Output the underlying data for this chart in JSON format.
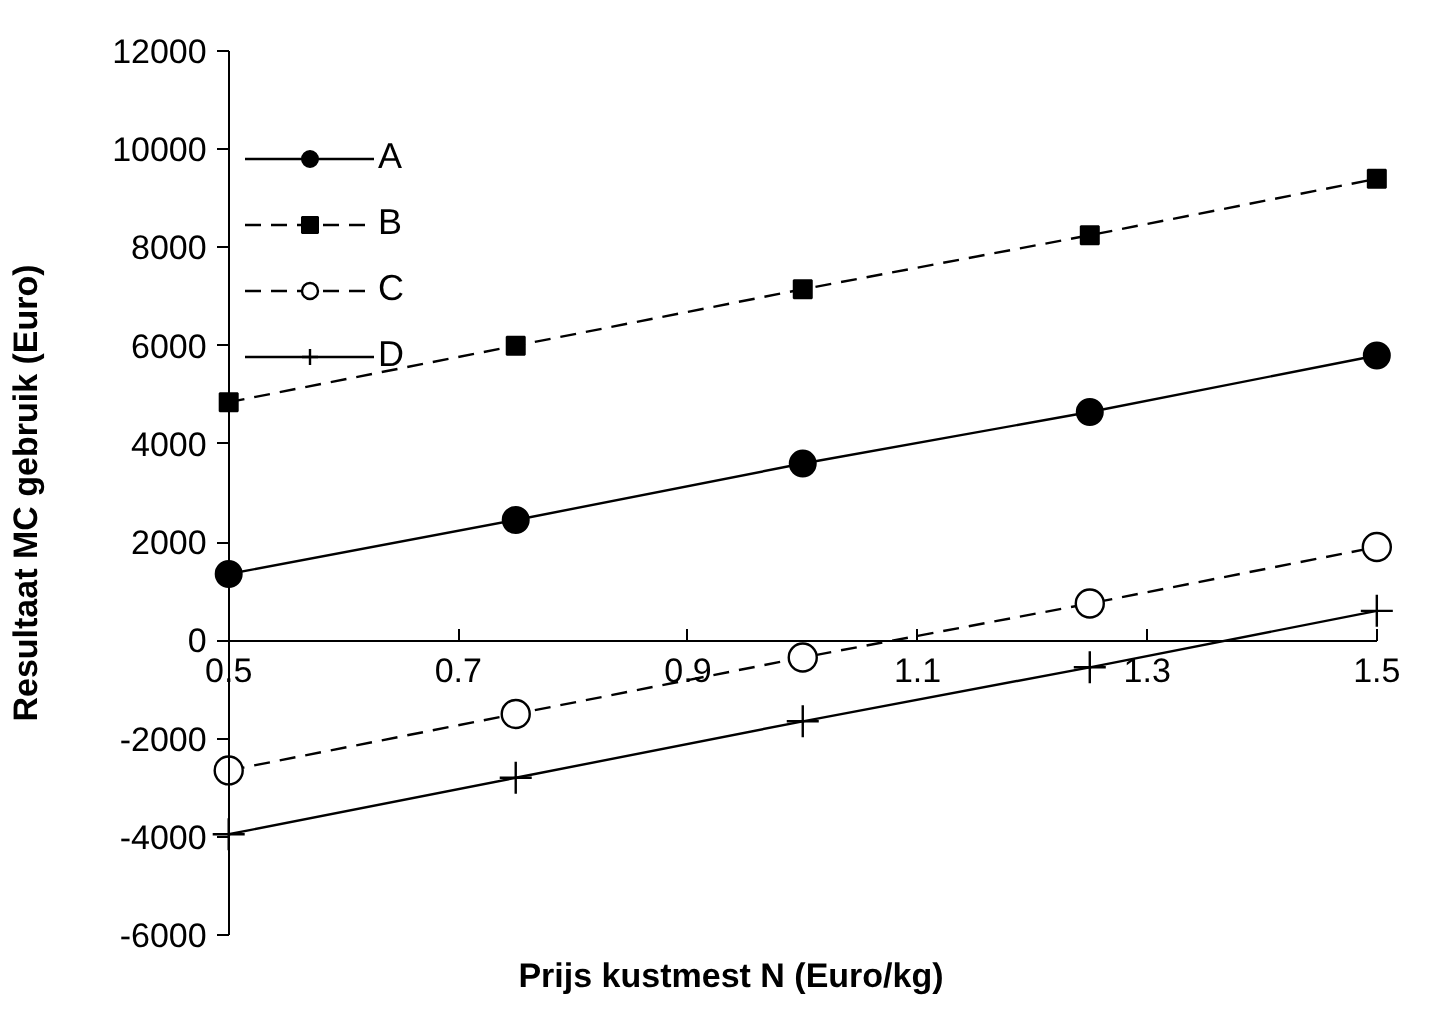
{
  "chart_data": {
    "type": "line",
    "xlabel": "Prijs kustmest N (Euro/kg)",
    "ylabel": "Resultaat MC gebruik (Euro)",
    "x": [
      0.5,
      0.75,
      1.0,
      1.25,
      1.5
    ],
    "xlim": [
      0.5,
      1.5
    ],
    "xticks": [
      0.5,
      0.7,
      0.9,
      1.1,
      1.3,
      1.5
    ],
    "ylim": [
      -6000,
      12000
    ],
    "yticks": [
      -6000,
      -4000,
      -2000,
      0,
      2000,
      4000,
      6000,
      8000,
      10000,
      12000
    ],
    "grid": false,
    "legend": "top left",
    "series": [
      {
        "name": "A",
        "color": "#000000",
        "marker": "circle",
        "line_style": "solid",
        "values": [
          1350,
          2450,
          3600,
          4650,
          5800
        ]
      },
      {
        "name": "B",
        "color": "#000000",
        "marker": "square",
        "line_style": "dashed",
        "values": [
          4850,
          6000,
          7150,
          8250,
          9400
        ]
      },
      {
        "name": "C",
        "color": "#000000",
        "marker": "open_circle",
        "line_style": "dashed",
        "values": [
          -2650,
          -1500,
          -350,
          750,
          1900
        ]
      },
      {
        "name": "D",
        "color": "#000000",
        "marker": "cross",
        "line_style": "solid",
        "values": [
          -3950,
          -2800,
          -1650,
          -550,
          600
        ]
      }
    ]
  }
}
